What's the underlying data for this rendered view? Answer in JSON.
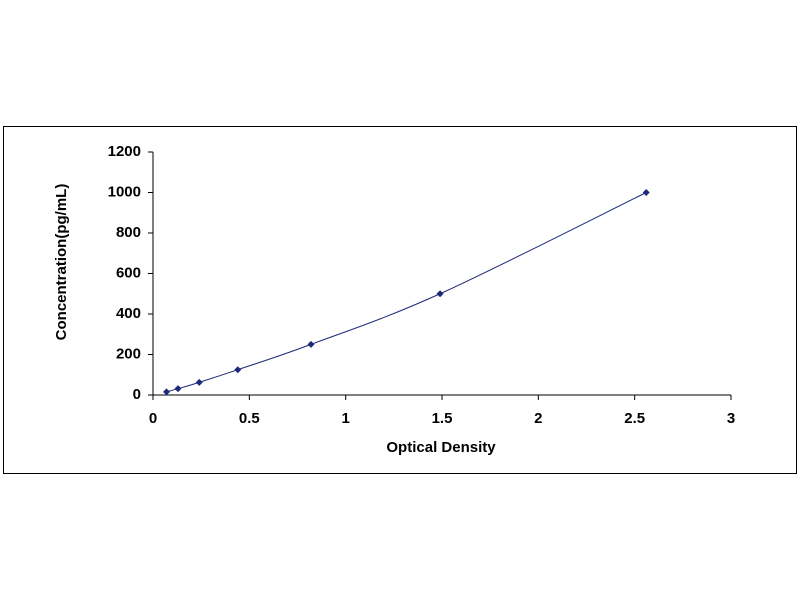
{
  "chart_data": {
    "type": "scatter",
    "line": true,
    "smooth": true,
    "x_label": "Optical Density",
    "y_label": "Concentration(pg/mL)",
    "x": [
      0.07,
      0.13,
      0.24,
      0.44,
      0.82,
      1.49,
      2.56
    ],
    "values": [
      15.6,
      31.2,
      62.5,
      125,
      250,
      500,
      1000
    ],
    "color": "#1c2a78",
    "xlim": [
      0,
      3
    ],
    "xticks": [
      0,
      0.5,
      1,
      1.5,
      2,
      2.5,
      3
    ],
    "ylim": [
      0,
      1200
    ],
    "yticks": [
      0,
      200,
      400,
      600,
      800,
      1000,
      1200
    ],
    "grid": false
  }
}
